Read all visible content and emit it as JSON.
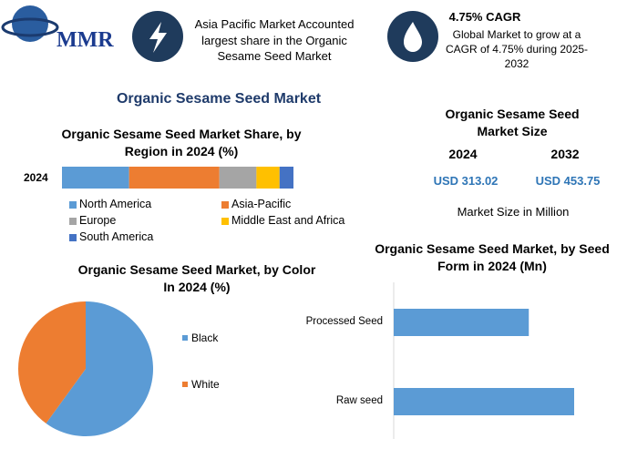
{
  "header": {
    "logo": "MMR",
    "fact": "Asia Pacific Market Accounted largest share in the Organic Sesame Seed Market",
    "cagr_title": "4.75% CAGR",
    "cagr_text": "Global Market to grow at a CAGR of 4.75% during 2025-2032"
  },
  "title": "Organic Sesame Seed Market",
  "market_size": {
    "title": "Organic Sesame Seed Market Size",
    "years": [
      "2024",
      "2032"
    ],
    "values": [
      "USD 313.02",
      "USD 453.75"
    ],
    "unit": "Market Size in Million"
  },
  "chart_data": [
    {
      "type": "bar",
      "orientation": "horizontal",
      "stacked": true,
      "title": "Organic Sesame Seed Market Share, by Region in 2024 (%)",
      "categories": [
        "2024"
      ],
      "series": [
        {
          "name": "North America",
          "color": "#5b9bd5",
          "values": [
            29
          ]
        },
        {
          "name": "Asia-Pacific",
          "color": "#ed7d31",
          "values": [
            39
          ]
        },
        {
          "name": "Europe",
          "color": "#a5a5a5",
          "values": [
            16
          ]
        },
        {
          "name": "Middle East and Africa",
          "color": "#ffc000",
          "values": [
            10
          ]
        },
        {
          "name": "South America",
          "color": "#4472c4",
          "values": [
            6
          ]
        }
      ]
    },
    {
      "type": "pie",
      "title": "Organic Sesame Seed Market, by Color In 2024 (%)",
      "categories": [
        "Black",
        "White"
      ],
      "values": [
        60,
        40
      ],
      "colors": [
        "#5b9bd5",
        "#ed7d31"
      ]
    },
    {
      "type": "bar",
      "orientation": "horizontal",
      "stacked": false,
      "title": "Organic Sesame Seed Market, by Seed Form in 2024 (Mn)",
      "categories": [
        "Processed Seed",
        "Raw seed"
      ],
      "values": [
        134,
        179
      ],
      "color": "#5b9bd5"
    }
  ]
}
